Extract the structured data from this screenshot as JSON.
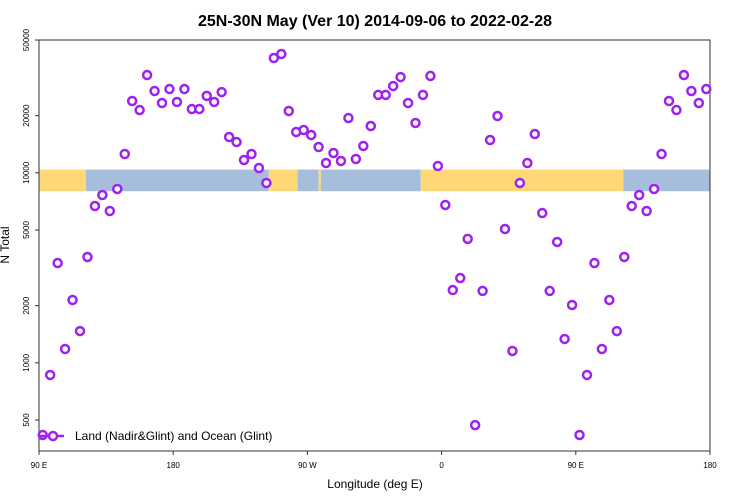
{
  "chart_data": {
    "type": "scatter",
    "title": "25N-30N May (Ver 10)   2014-09-06 to 2022-02-28",
    "xlabel": "Longitude (deg E)",
    "ylabel": "N Total",
    "y_scale": "log",
    "xlim": [
      90,
      540
    ],
    "ylim": [
      343,
      50000
    ],
    "x_ticks": [
      {
        "value": 90,
        "label": "90 E"
      },
      {
        "value": 180,
        "label": "180"
      },
      {
        "value": 270,
        "label": "90 W"
      },
      {
        "value": 360,
        "label": "0"
      },
      {
        "value": 450,
        "label": "90 E"
      },
      {
        "value": 540,
        "label": "180"
      }
    ],
    "y_ticks": [
      {
        "value": 50000,
        "label": "50000"
      },
      {
        "value": 20000,
        "label": "20000"
      },
      {
        "value": 10000,
        "label": "10000"
      },
      {
        "value": 5000,
        "label": "5000"
      },
      {
        "value": 2000,
        "label": "2000"
      },
      {
        "value": 1000,
        "label": "1000"
      },
      {
        "value": 500,
        "label": "500"
      }
    ],
    "legend": {
      "position": "bottom-left",
      "label": "Land (Nadir&Glint) and Ocean (Glint)"
    },
    "series": [
      {
        "name": "Land (Nadir&Glint) and Ocean (Glint)",
        "color": "#A020F0",
        "x_start": 92.5,
        "x_step": 5,
        "values": [
          417,
          863,
          3350,
          1182,
          2142,
          1469,
          3605,
          6687,
          7640,
          6295,
          8220,
          12560,
          23870,
          21400,
          32700,
          26950,
          23300,
          27600,
          23600,
          27600,
          21660,
          21660,
          25400,
          23600,
          26600,
          15430,
          14520,
          11680,
          12560,
          10600,
          8840,
          40200,
          42200,
          21150,
          16400,
          16800,
          15810,
          13670,
          11260,
          12710,
          11540,
          19420,
          11820,
          13840,
          17630,
          25700,
          25700,
          28600,
          31900,
          23300,
          18290,
          25700,
          32350,
          10860,
          6770,
          2415,
          2793,
          4487,
          470,
          2390,
          14880,
          19900,
          5060,
          1154,
          8840,
          11260,
          16000,
          6140,
          2390,
          4325,
          1335,
          2015,
          417,
          863,
          3350,
          1182,
          2142,
          1469,
          3605,
          6687,
          7640,
          6295,
          8220,
          12560,
          23870,
          21400,
          32700,
          26950,
          23300,
          27600
        ]
      }
    ],
    "surface_band": {
      "value_range": [
        8000,
        10400
      ],
      "land_color": "#FED777",
      "ocean_color": "#A6BDDB",
      "segments": [
        {
          "type": "land",
          "from": 90,
          "to": 121.5
        },
        {
          "type": "ocean",
          "from": 121.5,
          "to": 244
        },
        {
          "type": "land",
          "from": 244,
          "to": 263.5
        },
        {
          "type": "ocean",
          "from": 263.5,
          "to": 277.5
        },
        {
          "type": "land",
          "from": 277.5,
          "to": 279
        },
        {
          "type": "ocean",
          "from": 279,
          "to": 346
        },
        {
          "type": "land",
          "from": 346,
          "to": 482
        },
        {
          "type": "ocean",
          "from": 482,
          "to": 540
        }
      ]
    }
  }
}
